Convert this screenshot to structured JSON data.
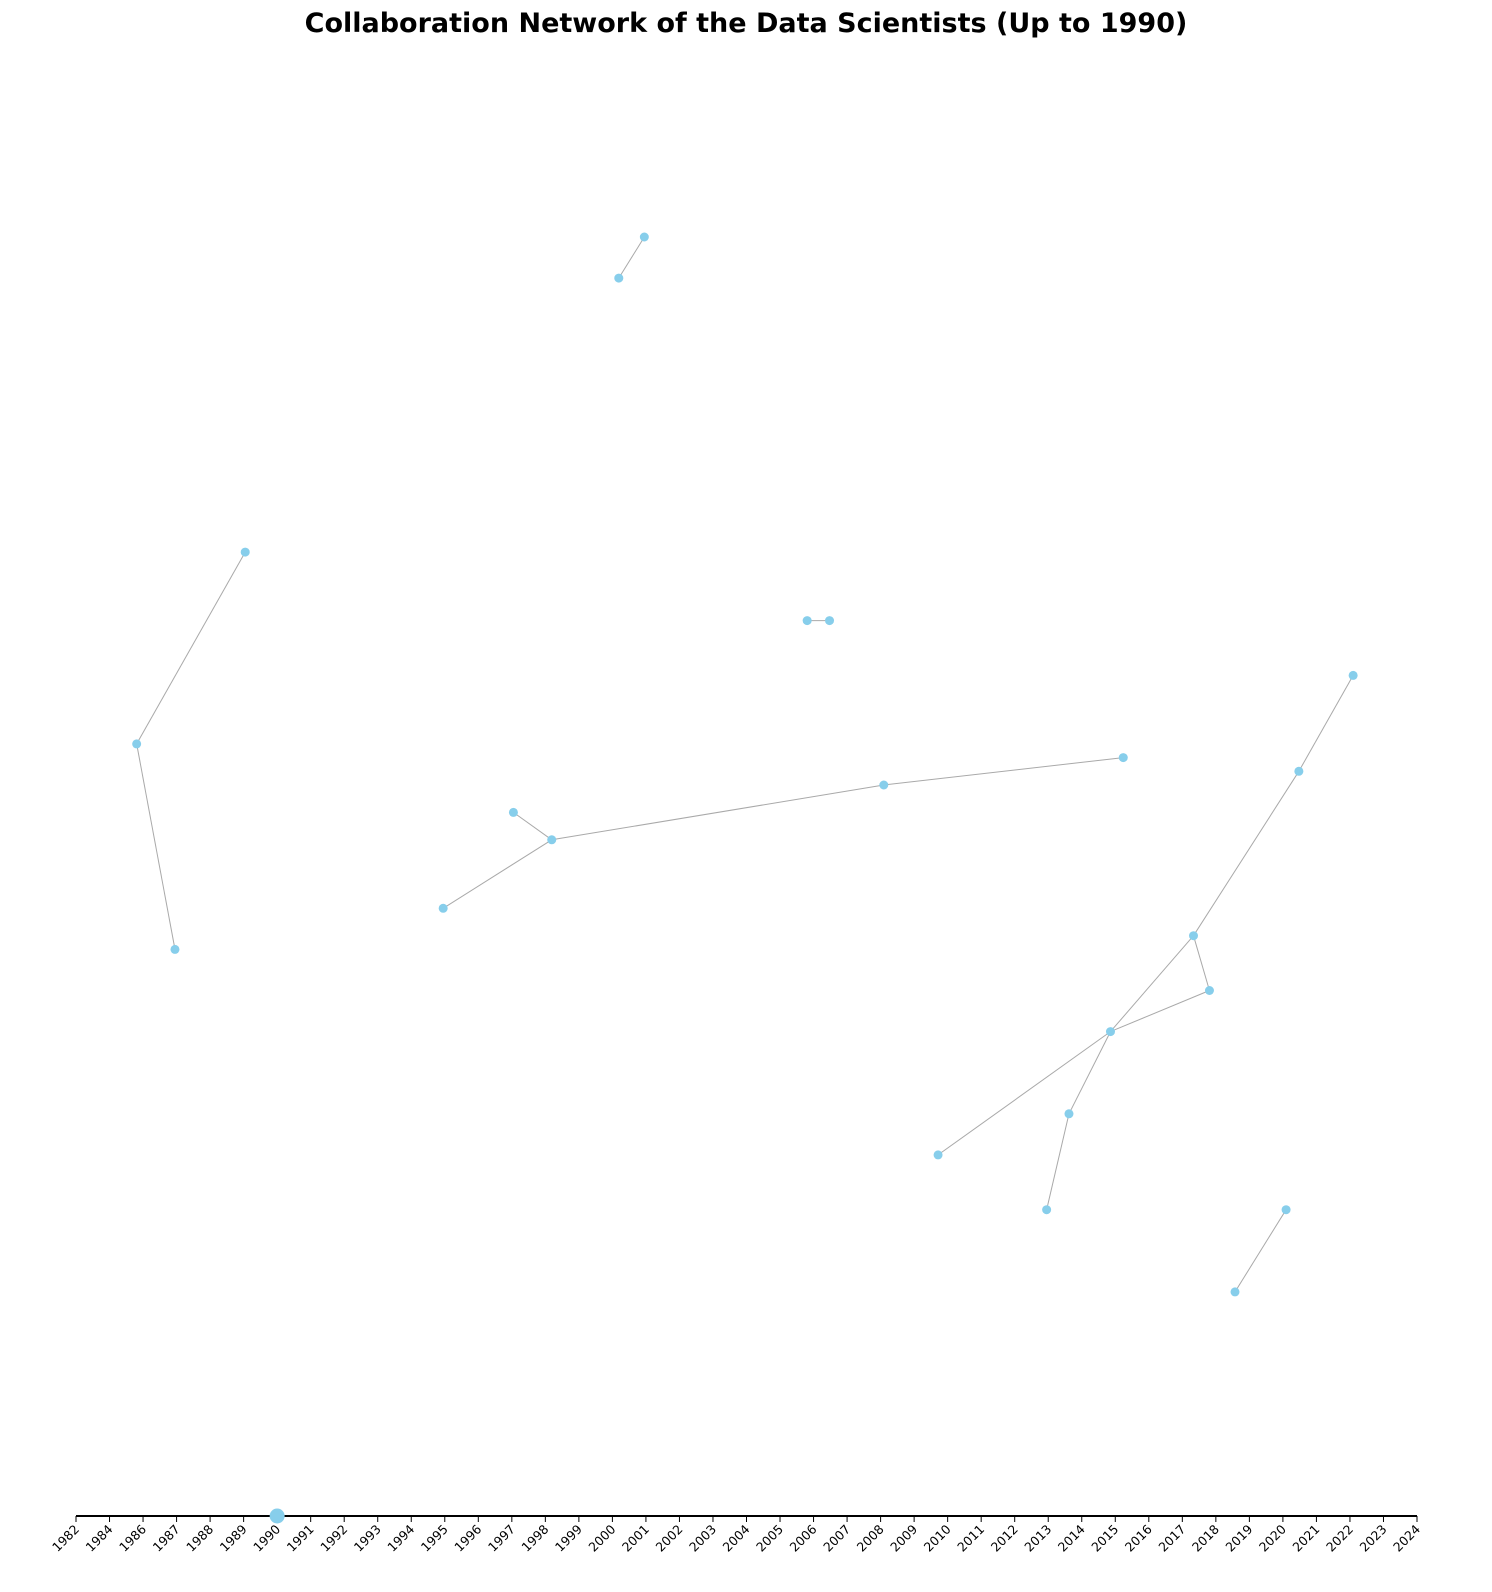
{
  "chart_data": {
    "type": "network",
    "title": "Collaboration Network of the Data Scientists (Up to 1990)",
    "timeline": {
      "ticks": [
        "1982",
        "1984",
        "1986",
        "1987",
        "1988",
        "1989",
        "1990",
        "1991",
        "1992",
        "1993",
        "1994",
        "1995",
        "1996",
        "1997",
        "1998",
        "1999",
        "2000",
        "2001",
        "2002",
        "2003",
        "2004",
        "2005",
        "2006",
        "2007",
        "2008",
        "2009",
        "2010",
        "2011",
        "2012",
        "2013",
        "2014",
        "2015",
        "2016",
        "2017",
        "2018",
        "2019",
        "2020",
        "2021",
        "2022",
        "2023",
        "2024"
      ],
      "range": [
        1982,
        2024
      ],
      "highlighted_year": "1990"
    },
    "nodes": [
      {
        "id": "n1",
        "x": 1999.8,
        "y": 0.9
      },
      {
        "id": "n2",
        "x": 1999.0,
        "y": 0.87
      },
      {
        "id": "n3",
        "x": 1987.3,
        "y": 0.67
      },
      {
        "id": "n4",
        "x": 1983.9,
        "y": 0.53
      },
      {
        "id": "n5",
        "x": 1985.1,
        "y": 0.38
      },
      {
        "id": "n6",
        "x": 2004.9,
        "y": 0.62
      },
      {
        "id": "n7",
        "x": 2005.6,
        "y": 0.62
      },
      {
        "id": "n8",
        "x": 2022.0,
        "y": 0.58
      },
      {
        "id": "n9",
        "x": 2020.3,
        "y": 0.51
      },
      {
        "id": "n10",
        "x": 2014.8,
        "y": 0.52
      },
      {
        "id": "n11",
        "x": 2007.3,
        "y": 0.5
      },
      {
        "id": "n12",
        "x": 1995.7,
        "y": 0.48
      },
      {
        "id": "n13",
        "x": 1996.9,
        "y": 0.46
      },
      {
        "id": "n14",
        "x": 1993.5,
        "y": 0.41
      },
      {
        "id": "n15",
        "x": 2017.0,
        "y": 0.39
      },
      {
        "id": "n16",
        "x": 2017.5,
        "y": 0.35
      },
      {
        "id": "n17",
        "x": 2014.4,
        "y": 0.32
      },
      {
        "id": "n18",
        "x": 2013.1,
        "y": 0.26
      },
      {
        "id": "n19",
        "x": 2009.0,
        "y": 0.23
      },
      {
        "id": "n20",
        "x": 2012.4,
        "y": 0.19
      },
      {
        "id": "n21",
        "x": 2019.9,
        "y": 0.19
      },
      {
        "id": "n22",
        "x": 2018.3,
        "y": 0.13
      }
    ],
    "edges": [
      [
        "n1",
        "n2"
      ],
      [
        "n3",
        "n4"
      ],
      [
        "n4",
        "n5"
      ],
      [
        "n6",
        "n7"
      ],
      [
        "n8",
        "n9"
      ],
      [
        "n9",
        "n15"
      ],
      [
        "n15",
        "n16"
      ],
      [
        "n15",
        "n17"
      ],
      [
        "n16",
        "n17"
      ],
      [
        "n17",
        "n18"
      ],
      [
        "n17",
        "n19"
      ],
      [
        "n18",
        "n20"
      ],
      [
        "n10",
        "n11"
      ],
      [
        "n11",
        "n13"
      ],
      [
        "n12",
        "n13"
      ],
      [
        "n13",
        "n14"
      ],
      [
        "n21",
        "n22"
      ]
    ],
    "colors": {
      "node": "#87ceeb",
      "edge": "#a9a9a9",
      "axis": "#000000"
    }
  }
}
